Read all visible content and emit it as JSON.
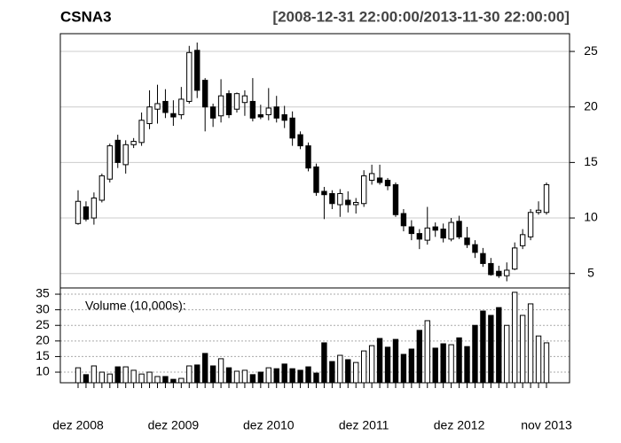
{
  "chart_data": [
    {
      "type": "candlestick",
      "title": "CSNA3",
      "subtitle": "[2008-12-31 22:00:00/2013-11-30 22:00:00]",
      "categories": [
        "dez 2008",
        null,
        null,
        null,
        null,
        null,
        null,
        null,
        null,
        null,
        null,
        null,
        "dez 2009",
        null,
        null,
        null,
        null,
        null,
        null,
        null,
        null,
        null,
        null,
        null,
        "dez 2010",
        null,
        null,
        null,
        null,
        null,
        null,
        null,
        null,
        null,
        null,
        null,
        "dez 2011",
        null,
        null,
        null,
        null,
        null,
        null,
        null,
        null,
        null,
        null,
        null,
        "dez 2012",
        null,
        null,
        null,
        null,
        null,
        null,
        null,
        null,
        null,
        null,
        "nov 2013"
      ],
      "open": [
        9.5,
        11,
        10,
        11.6,
        13.5,
        17,
        14.8,
        16.6,
        16.8,
        18.5,
        19.8,
        20.5,
        19.4,
        19.3,
        20.5,
        25.1,
        22.4,
        20,
        19.2,
        21.2,
        19.8,
        20.4,
        20.5,
        19.3,
        19.3,
        20,
        19.3,
        19,
        17.5,
        16.5,
        14.6,
        12.4,
        12.2,
        11.2,
        11.6,
        11.2,
        11.3,
        13.4,
        13.6,
        13.4,
        13,
        10.4,
        9.2,
        8.6,
        8,
        9.2,
        9,
        8.1,
        9.7,
        8.2,
        7.6,
        6.8,
        5.9,
        5.2,
        4.8,
        5.4,
        7.5,
        8.3,
        10.5,
        10.5
      ],
      "high": [
        12.5,
        11.5,
        12.3,
        14,
        16.7,
        17.5,
        17,
        17.2,
        19.5,
        21.5,
        22,
        21.6,
        20.6,
        21.8,
        25.5,
        25.8,
        22.6,
        20.3,
        22.5,
        21.5,
        21.3,
        21.5,
        22.6,
        20.2,
        21.7,
        21,
        20.1,
        19.6,
        17.8,
        16.8,
        14.9,
        12.8,
        12.5,
        12.6,
        12.4,
        11.8,
        14.3,
        14.8,
        14.8,
        13.6,
        13.2,
        10.8,
        9.8,
        9,
        11,
        9.6,
        9.5,
        10,
        10.2,
        9.2,
        8,
        7.3,
        6.4,
        5.7,
        6,
        7.8,
        9,
        10.8,
        11.5,
        13.2
      ],
      "low": [
        9.4,
        9.7,
        9.4,
        11.4,
        13.2,
        14.5,
        14,
        16.3,
        16.5,
        18,
        18.5,
        19,
        18.3,
        18.9,
        20.3,
        20.8,
        17.8,
        18.2,
        18.6,
        19,
        19.5,
        19.2,
        18.7,
        18.9,
        18.8,
        18.6,
        18.1,
        16.5,
        16.2,
        14.2,
        12,
        9.9,
        10.8,
        10.1,
        10.5,
        10.4,
        11,
        13,
        13,
        12.5,
        10.1,
        8.8,
        8,
        7.2,
        7.6,
        8.3,
        7.8,
        7.9,
        8.1,
        7.3,
        6.4,
        5.6,
        4.8,
        4.6,
        4.3,
        5.3,
        7.2,
        8,
        10.3,
        10.3
      ],
      "close": [
        11.5,
        9.9,
        11.8,
        13.8,
        16.5,
        15,
        16.6,
        16.9,
        18.8,
        20,
        20.3,
        19.5,
        19.1,
        20.7,
        24.9,
        21.5,
        20,
        19,
        21,
        19.3,
        21.2,
        21,
        19,
        19.1,
        19.9,
        19,
        18.8,
        17.2,
        16.5,
        14.5,
        12.3,
        12.1,
        11.3,
        12.2,
        11.2,
        11.4,
        13.8,
        14,
        13.2,
        12.9,
        10.3,
        9.3,
        8.6,
        8.1,
        9.1,
        8.9,
        8.2,
        9.6,
        8.3,
        7.6,
        6.9,
        5.9,
        4.9,
        4.8,
        5.3,
        7.3,
        8.5,
        10.5,
        10.7,
        13
      ],
      "up_color": "#ffffff",
      "down_color": "#000000",
      "ylim": [
        3.7,
        26.6
      ],
      "yticks": [
        5,
        10,
        15,
        20,
        25
      ],
      "grid": true
    },
    {
      "type": "bar",
      "label": "Volume (10,000s):",
      "values": [
        11.4,
        9.2,
        12,
        10,
        9.4,
        11.7,
        11.7,
        10.6,
        9.4,
        10,
        8.6,
        8.6,
        7.7,
        8,
        12,
        12.3,
        16,
        12,
        14.3,
        11.4,
        10.3,
        10.6,
        9.2,
        10,
        11.4,
        11.1,
        12.6,
        11.1,
        10.6,
        11.7,
        9.7,
        19.4,
        13.4,
        15.4,
        14,
        13.1,
        16.8,
        18.5,
        20.8,
        18,
        20.5,
        15.7,
        17.4,
        23.4,
        26.5,
        17.7,
        19.1,
        18.8,
        21,
        18.2,
        25,
        29.6,
        28.2,
        30.7,
        25,
        35.6,
        28.2,
        31.9,
        21.6,
        19.4
      ],
      "ylim": [
        6.6,
        37
      ],
      "yticks": [
        10,
        15,
        20,
        25,
        30,
        35
      ],
      "grid": true
    }
  ]
}
